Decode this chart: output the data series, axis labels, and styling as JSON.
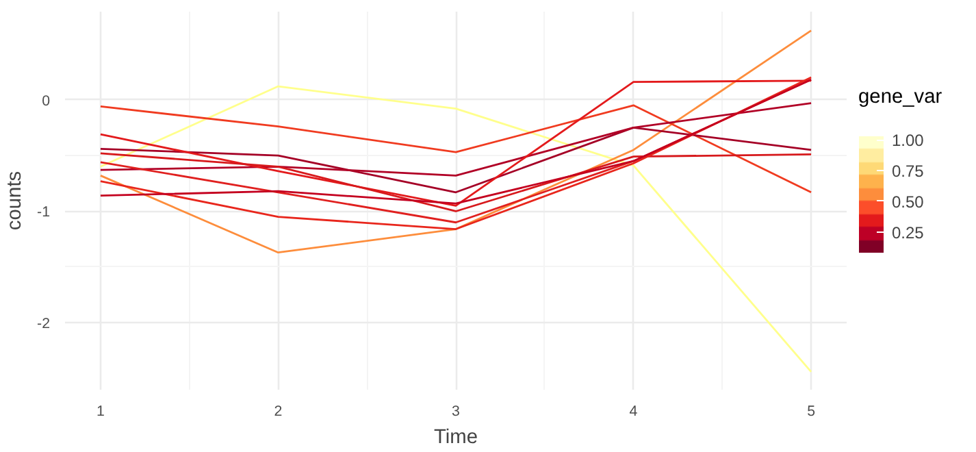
{
  "chart_data": {
    "type": "line",
    "xlabel": "Time",
    "ylabel": "counts",
    "clabel": "gene_var",
    "x": [
      1,
      2,
      3,
      4,
      5
    ],
    "series": [
      {
        "color": "#ffff8c",
        "values": [
          -0.6,
          0.12,
          -0.08,
          -0.59,
          -2.44
        ]
      },
      {
        "color": "#fd8d3c",
        "values": [
          -0.68,
          -1.37,
          -1.16,
          -0.45,
          0.62
        ]
      },
      {
        "color": "#f03b20",
        "values": [
          -0.06,
          -0.24,
          -0.47,
          -0.05,
          -0.83
        ]
      },
      {
        "color": "#a50026",
        "values": [
          -0.44,
          -0.5,
          -0.83,
          -0.25,
          -0.45
        ]
      },
      {
        "color": "#b10026",
        "values": [
          -0.63,
          -0.6,
          -0.68,
          -0.25,
          -0.03
        ]
      },
      {
        "color": "#e31a1c",
        "values": [
          -0.31,
          -0.64,
          -0.95,
          0.16,
          0.17
        ]
      },
      {
        "color": "#d7191c",
        "values": [
          -0.48,
          -0.6,
          -1.0,
          -0.51,
          -0.49
        ]
      },
      {
        "color": "#e0201f",
        "values": [
          -0.56,
          -0.83,
          -1.1,
          -0.55,
          0.18
        ]
      },
      {
        "color": "#e8261c",
        "values": [
          -0.73,
          -1.05,
          -1.16,
          -0.57,
          0.2
        ]
      },
      {
        "color": "#c4001f",
        "values": [
          -0.86,
          -0.82,
          -0.93,
          -0.55,
          0.18
        ]
      }
    ],
    "xlim": [
      0.8,
      5.2
    ],
    "ylim": [
      -2.6,
      0.79
    ],
    "xticks": [
      1,
      2,
      3,
      4,
      5
    ],
    "yticks": [
      -2,
      -1,
      0
    ],
    "clim": [
      0.08,
      1.03
    ],
    "cticks": [
      {
        "value": 0.25,
        "label": "0.25"
      },
      {
        "value": 0.5,
        "label": "0.50"
      },
      {
        "value": 0.75,
        "label": "0.75"
      },
      {
        "value": 1.0,
        "label": "1.00"
      }
    ],
    "grid": true,
    "marker": "none",
    "line_style": "solid"
  }
}
